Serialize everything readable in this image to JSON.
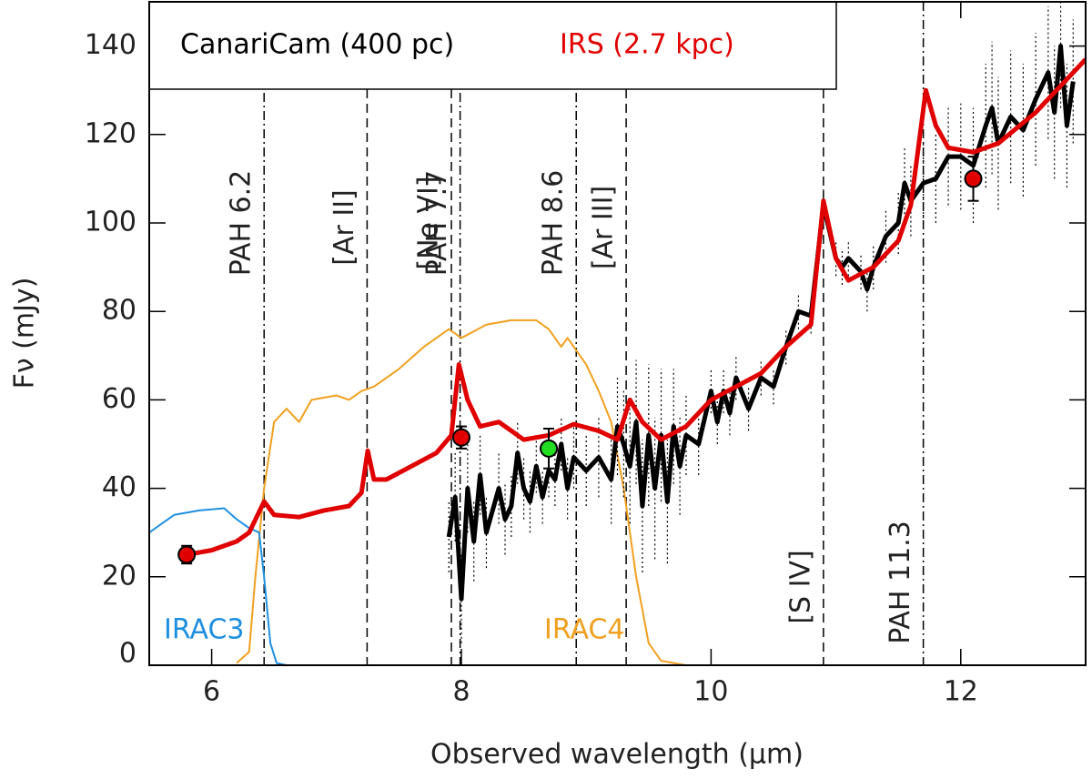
{
  "chart_data": {
    "type": "line",
    "xlabel": "Observed wavelength (μm)",
    "ylabel": "Fν (mJy)",
    "xlim": [
      5.5,
      13.0
    ],
    "ylim": [
      0,
      150
    ],
    "xticks": [
      6,
      8,
      10,
      12
    ],
    "yticks": [
      0,
      20,
      40,
      60,
      80,
      100,
      120,
      140
    ],
    "legend_position": "upper left",
    "series": [
      {
        "name": "CanariCam (400 pc)",
        "color": "#000000",
        "width": 5,
        "x": [
          7.9,
          7.95,
          8.0,
          8.05,
          8.1,
          8.15,
          8.2,
          8.3,
          8.35,
          8.4,
          8.45,
          8.5,
          8.55,
          8.6,
          8.65,
          8.7,
          8.75,
          8.8,
          8.85,
          8.9,
          9.0,
          9.1,
          9.2,
          9.25,
          9.3,
          9.35,
          9.4,
          9.45,
          9.5,
          9.55,
          9.6,
          9.65,
          9.7,
          9.75,
          9.8,
          9.9,
          10.0,
          10.05,
          10.1,
          10.15,
          10.2,
          10.3,
          10.4,
          10.5,
          10.6,
          10.7,
          10.8,
          10.9,
          11.0,
          11.05,
          11.1,
          11.2,
          11.25,
          11.3,
          11.4,
          11.5,
          11.55,
          11.6,
          11.7,
          11.8,
          11.9,
          12.0,
          12.1,
          12.2,
          12.25,
          12.3,
          12.4,
          12.5,
          12.6,
          12.7,
          12.75,
          12.8,
          12.85,
          12.9
        ],
        "values": [
          29,
          38,
          15,
          40,
          28,
          43,
          30,
          40,
          33,
          36,
          48,
          40,
          37,
          45,
          38,
          44,
          42,
          50,
          40,
          47,
          44,
          47,
          42,
          54,
          50,
          45,
          55,
          36,
          52,
          40,
          52,
          37,
          54,
          45,
          52,
          50,
          62,
          55,
          62,
          57,
          65,
          58,
          65,
          63,
          72,
          80,
          79,
          104,
          92,
          90,
          92,
          89,
          85,
          90,
          97,
          100,
          109,
          105,
          109,
          110,
          115,
          115,
          113,
          122,
          126,
          118,
          124,
          121,
          128,
          134,
          125,
          140,
          122,
          132
        ],
        "errors": [
          8,
          10,
          10,
          10,
          9,
          9,
          8,
          8,
          8,
          7,
          7,
          7,
          7,
          6,
          6,
          6,
          6,
          6,
          7,
          7,
          8,
          9,
          10,
          11,
          12,
          13,
          14,
          15,
          16,
          16,
          15,
          14,
          13,
          11,
          9,
          7,
          5,
          5,
          5,
          5,
          5,
          5,
          4,
          4,
          4,
          4,
          4,
          4,
          4,
          4,
          4,
          4,
          5,
          5,
          6,
          7,
          8,
          8,
          9,
          10,
          11,
          12,
          13,
          14,
          15,
          15,
          15,
          15,
          15,
          15,
          15,
          14,
          14,
          14
        ]
      },
      {
        "name": "IRS (2.7 kpc)",
        "color": "#e00000",
        "width": 5,
        "x": [
          5.8,
          5.9,
          6.0,
          6.1,
          6.2,
          6.3,
          6.42,
          6.5,
          6.7,
          6.9,
          7.1,
          7.2,
          7.25,
          7.3,
          7.4,
          7.6,
          7.8,
          7.92,
          7.98,
          8.05,
          8.15,
          8.3,
          8.5,
          8.7,
          8.9,
          9.1,
          9.25,
          9.35,
          9.45,
          9.6,
          9.8,
          10.0,
          10.2,
          10.4,
          10.6,
          10.8,
          10.9,
          11.0,
          11.1,
          11.3,
          11.5,
          11.6,
          11.72,
          11.8,
          11.9,
          12.1,
          12.3,
          12.6,
          12.8,
          13.0
        ],
        "values": [
          25,
          25.5,
          26,
          27,
          28,
          30,
          37,
          34,
          33.5,
          35,
          36,
          39,
          48.5,
          42,
          42,
          45,
          48,
          52,
          68,
          60,
          54,
          55,
          51,
          52,
          54.5,
          53,
          51,
          60,
          55,
          51,
          54,
          60,
          63,
          66,
          72,
          77,
          105,
          92,
          87,
          90,
          96,
          104,
          130,
          122,
          117,
          116,
          118,
          125,
          131,
          137
        ]
      },
      {
        "color": "#1f8fe0",
        "width": 2,
        "x": [
          5.5,
          5.6,
          5.7,
          5.9,
          6.1,
          6.2,
          6.3,
          6.38,
          6.42,
          6.47,
          6.52,
          6.6
        ],
        "values": [
          30,
          32,
          34,
          35,
          35.5,
          33,
          31,
          30,
          20,
          5,
          0.5,
          0
        ]
      },
      {
        "color": "#f0a020",
        "width": 2,
        "x": [
          6.2,
          6.3,
          6.35,
          6.42,
          6.5,
          6.6,
          6.7,
          6.8,
          7.0,
          7.1,
          7.2,
          7.3,
          7.5,
          7.7,
          7.9,
          8.0,
          8.2,
          8.4,
          8.6,
          8.7,
          8.8,
          8.85,
          9.0,
          9.1,
          9.2,
          9.3,
          9.4,
          9.5,
          9.6,
          9.8,
          10.5
        ],
        "values": [
          0.5,
          3,
          20,
          40,
          55,
          58,
          55,
          60,
          61,
          60,
          62,
          63,
          67,
          72,
          76,
          74,
          77,
          78,
          78,
          76,
          72,
          74,
          68,
          62,
          55,
          40,
          20,
          5,
          1,
          0,
          0
        ]
      }
    ],
    "points": [
      {
        "color": "#e00000",
        "x": [
          5.8,
          8.0,
          12.1
        ],
        "values": [
          25,
          51.5,
          110
        ],
        "errors": [
          2,
          2.5,
          5
        ]
      },
      {
        "color": "#22dd22",
        "x": [
          8.7
        ],
        "values": [
          49
        ],
        "errors": [
          4.5
        ]
      }
    ],
    "vlines": [
      {
        "label": "PAH 6.2",
        "x": 6.42,
        "style": "dashdot"
      },
      {
        "label": "[Ar II]",
        "x": 7.245,
        "style": "dashed"
      },
      {
        "label": "[Ne VI]",
        "x": 7.92,
        "style": "dashed"
      },
      {
        "label": "PAH 7.7",
        "x": 7.99,
        "style": "dashdot"
      },
      {
        "label": "PAH 8.6",
        "x": 8.92,
        "style": "dashdot"
      },
      {
        "label": "[Ar III]",
        "x": 9.32,
        "style": "dashed"
      },
      {
        "label": "[S IV]",
        "x": 10.9,
        "style": "dashed"
      },
      {
        "label": "PAH 11.3",
        "x": 11.7,
        "style": "dashdot"
      }
    ],
    "annotations": [
      {
        "text": "IRAC3",
        "color": "#1f8fe0"
      },
      {
        "text": "IRAC4",
        "color": "#f0a020"
      }
    ]
  }
}
